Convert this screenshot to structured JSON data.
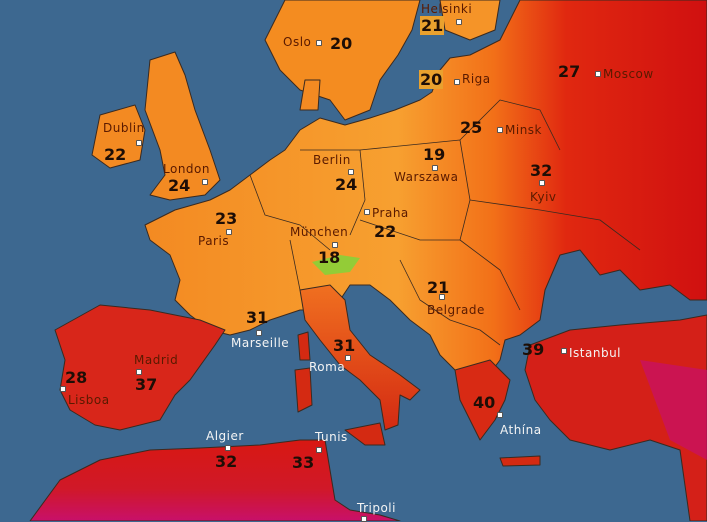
{
  "map": {
    "colors": {
      "sea": "#3d6890",
      "cool": "#f0a030",
      "mild": "#f58a1e",
      "warm": "#f04810",
      "hot": "#d41010",
      "very_hot": "#c8106a",
      "cold_spot": "#7ad83a"
    },
    "cities": [
      {
        "name": "Helsinki",
        "temp": "21"
      },
      {
        "name": "Oslo",
        "temp": "20"
      },
      {
        "name": "Riga",
        "temp": "20"
      },
      {
        "name": "Moscow",
        "temp": "27"
      },
      {
        "name": "Minsk",
        "temp": "25"
      },
      {
        "name": "Dublin",
        "temp": "22"
      },
      {
        "name": "London",
        "temp": "24"
      },
      {
        "name": "Berlin",
        "temp": "24"
      },
      {
        "name": "Warszawa",
        "temp": "19"
      },
      {
        "name": "Kyiv",
        "temp": "32"
      },
      {
        "name": "Praha",
        "temp": "22"
      },
      {
        "name": "Paris",
        "temp": "23"
      },
      {
        "name": "München",
        "temp": "18"
      },
      {
        "name": "Belgrade",
        "temp": "21"
      },
      {
        "name": "Marseille",
        "temp": "31"
      },
      {
        "name": "Roma",
        "temp": "31"
      },
      {
        "name": "Istanbul",
        "temp": "39"
      },
      {
        "name": "Madrid",
        "temp": "37"
      },
      {
        "name": "Lisboa",
        "temp": "28"
      },
      {
        "name": "Athína",
        "temp": "40"
      },
      {
        "name": "Algier",
        "temp": "32"
      },
      {
        "name": "Tunis",
        "temp": "33"
      },
      {
        "name": "Tripoli",
        "temp": ""
      }
    ]
  }
}
